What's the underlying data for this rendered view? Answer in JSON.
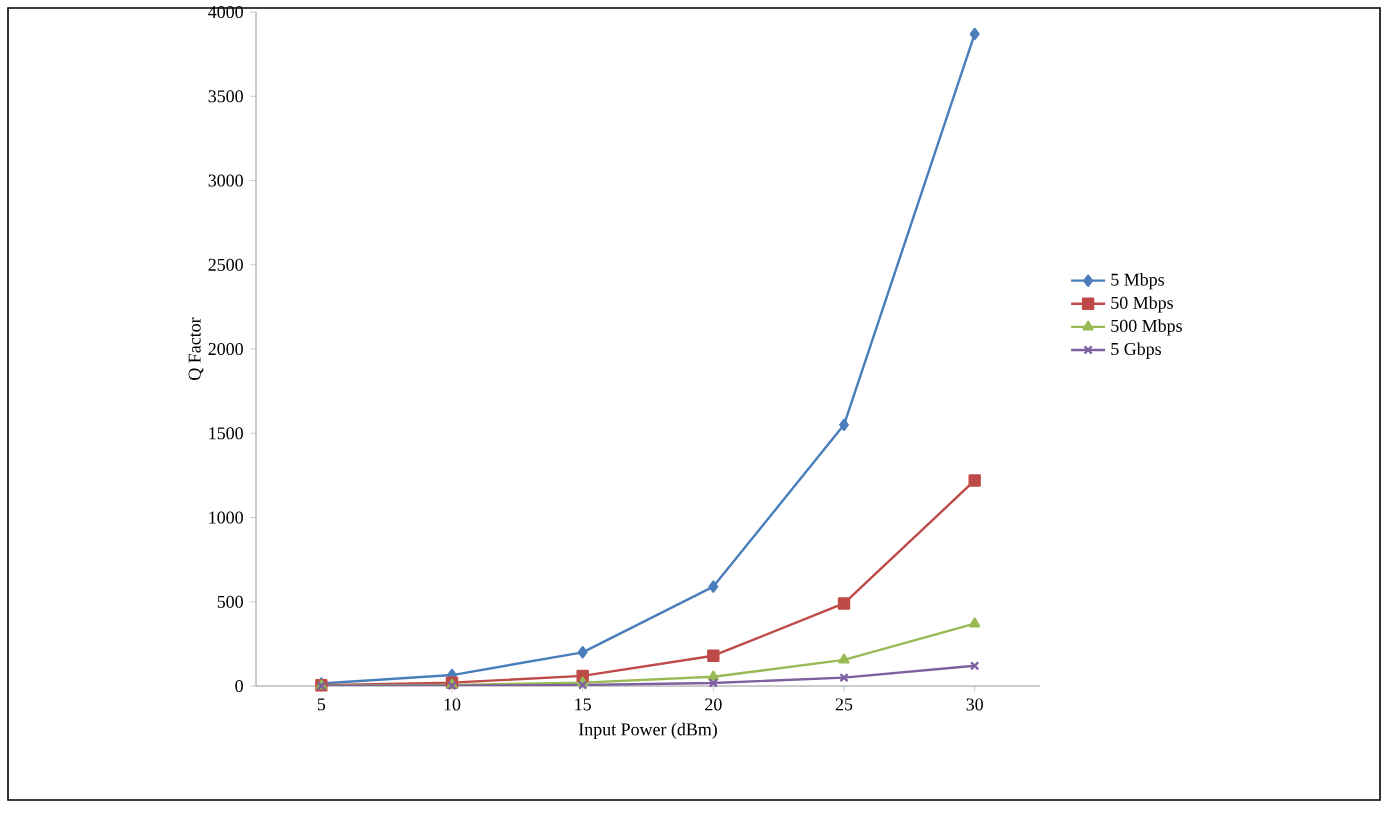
{
  "chart_data": {
    "type": "line",
    "xlabel": "Input Power (dBm)",
    "ylabel": "Q Factor",
    "categories": [
      "5",
      "10",
      "15",
      "20",
      "25",
      "30"
    ],
    "ylim": [
      0,
      4000
    ],
    "yticks": [
      0,
      500,
      1000,
      1500,
      2000,
      2500,
      3000,
      3500,
      4000
    ],
    "grid": false,
    "legend": "right",
    "line_style": "solid",
    "series": [
      {
        "name": "5 Mbps",
        "color": "#4a7ebb",
        "marker": "diamond",
        "values": [
          15,
          65,
          200,
          590,
          1550,
          3870
        ]
      },
      {
        "name": "50 Mbps",
        "color": "#be4b48",
        "marker": "square",
        "values": [
          5,
          20,
          60,
          180,
          490,
          1220
        ]
      },
      {
        "name": "500 Mbps",
        "color": "#98b954",
        "marker": "triangle",
        "values": [
          2,
          6,
          20,
          55,
          155,
          370
        ]
      },
      {
        "name": "5 Gbps",
        "color": "#7d60a0",
        "marker": "cross",
        "values": [
          1,
          2,
          6,
          18,
          50,
          120
        ]
      }
    ]
  }
}
